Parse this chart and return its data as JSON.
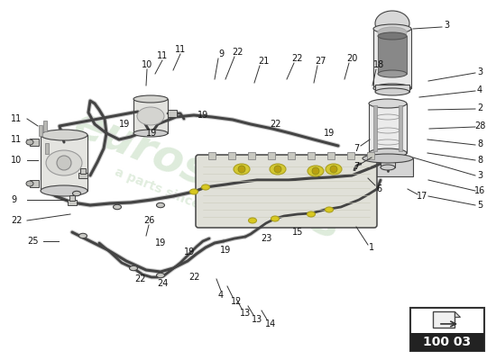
{
  "bg_color": "#ffffff",
  "watermark_text": "eurospares",
  "watermark_subtext": "a parts since 1985",
  "watermark_color": "#c8dfc4",
  "diagram_code": "100 03",
  "line_color": "#444444",
  "pipe_color": "#888888",
  "pipe_lw": 2.5,
  "thin_lw": 0.8,
  "label_fs": 7.0,
  "leader_color": "#333333",
  "highlight_yellow": "#d4c832"
}
